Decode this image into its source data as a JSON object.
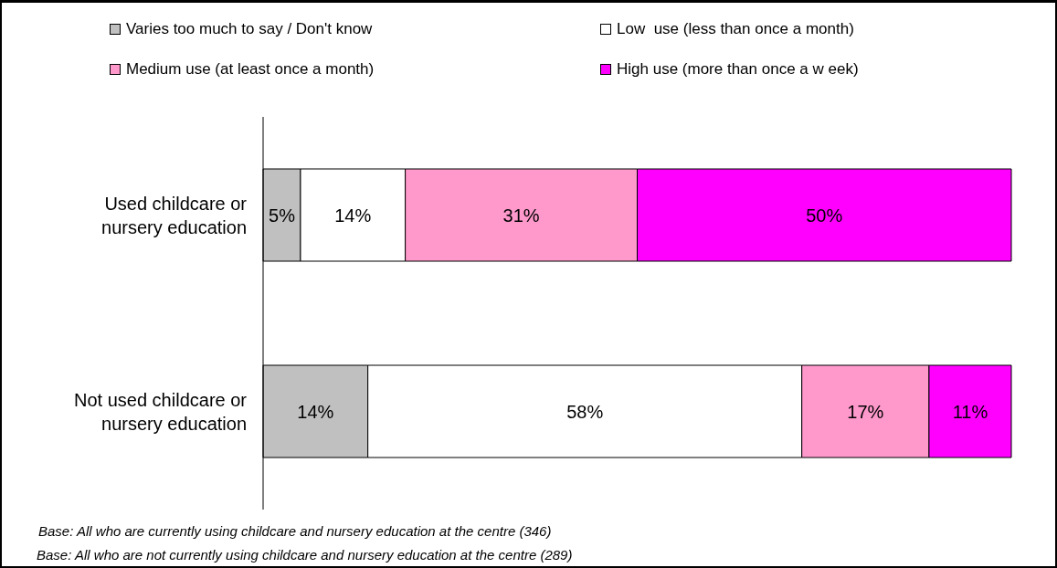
{
  "chart_data": {
    "type": "bar",
    "orientation": "horizontal",
    "stacked": true,
    "legend": "top",
    "categories": [
      "Used childcare or nursery education",
      "Not used childcare or nursery education"
    ],
    "series": [
      {
        "name": "Varies too much to say / Don't know",
        "color": "#c0c0c0",
        "values": [
          5,
          14
        ],
        "value_labels": [
          "5%",
          "14%"
        ]
      },
      {
        "name": "Low  use (less than once a month)",
        "color": "#ffffff",
        "values": [
          14,
          58
        ],
        "value_labels": [
          "14%",
          "58%"
        ]
      },
      {
        "name": "Medium use (at least once a month)",
        "color": "#ff99cc",
        "values": [
          31,
          17
        ],
        "value_labels": [
          "31%",
          "17%"
        ]
      },
      {
        "name": "High use (more than once a w eek)",
        "color": "#ff00ff",
        "values": [
          50,
          11
        ],
        "value_labels": [
          "50%",
          "11%"
        ]
      }
    ],
    "annotations": [
      "Base: All who are currently using childcare and nursery education at the centre (346)",
      "Base: All who are not currently using childcare and nursery education at the centre (289)"
    ]
  }
}
